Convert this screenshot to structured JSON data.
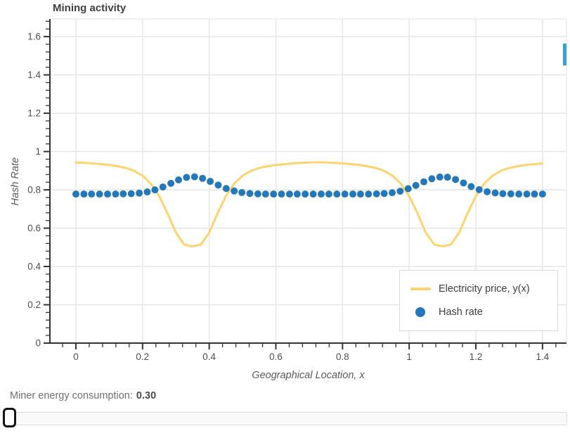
{
  "controls": {
    "consumption_label": "Miner energy consumption:",
    "consumption_value": "0.30",
    "slider": {
      "value": 0.3,
      "handle_position": "far-left"
    }
  },
  "scrollbar": {
    "color": "#34a1d7"
  },
  "chart_data": {
    "type": "line+scatter",
    "title": "Mining activity",
    "xlabel": "Geographical Location, x",
    "ylabel": "Hash Rate",
    "xlim": [
      -0.078,
      1.472
    ],
    "ylim": [
      0,
      1.692
    ],
    "grid": true,
    "legend_position": "bottom-right",
    "minor_tick_step": 0.04,
    "x_ticks": [
      0,
      0.2,
      0.4,
      0.6,
      0.8,
      1,
      1.2,
      1.4
    ],
    "x_tick_labels": [
      "0",
      "0.2",
      "0.4",
      "0.6",
      "0.8",
      "1",
      "1.2",
      "1.4"
    ],
    "y_ticks": [
      0,
      0.2,
      0.4,
      0.6,
      0.8,
      1,
      1.2,
      1.4,
      1.6
    ],
    "y_tick_labels": [
      "0",
      "0.2",
      "0.4",
      "0.6",
      "0.8",
      "1",
      "1.2",
      "1.4",
      "1.6"
    ],
    "colors": {
      "grid": "#e6e6e6",
      "axis": "#333333",
      "tick_label": "#4d4d4d"
    },
    "series": [
      {
        "name": "Electricity price, y(x)",
        "type": "line",
        "color": "#fbd470",
        "x": [
          0,
          0.025,
          0.05,
          0.075,
          0.1,
          0.125,
          0.15,
          0.175,
          0.2,
          0.225,
          0.25,
          0.275,
          0.3,
          0.325,
          0.35,
          0.375,
          0.4,
          0.425,
          0.45,
          0.475,
          0.5,
          0.525,
          0.55,
          0.575,
          0.6,
          0.625,
          0.65,
          0.675,
          0.7,
          0.725,
          0.75,
          0.775,
          0.8,
          0.825,
          0.85,
          0.875,
          0.9,
          0.925,
          0.95,
          0.975,
          1,
          1.025,
          1.05,
          1.075,
          1.1,
          1.125,
          1.15,
          1.175,
          1.2,
          1.225,
          1.25,
          1.275,
          1.3,
          1.325,
          1.35,
          1.375,
          1.4
        ],
        "y": [
          0.943,
          0.941,
          0.938,
          0.934,
          0.93,
          0.923,
          0.914,
          0.899,
          0.874,
          0.832,
          0.767,
          0.677,
          0.577,
          0.514,
          0.505,
          0.514,
          0.577,
          0.677,
          0.767,
          0.832,
          0.874,
          0.899,
          0.914,
          0.923,
          0.93,
          0.934,
          0.938,
          0.941,
          0.943,
          0.944,
          0.943,
          0.941,
          0.938,
          0.934,
          0.93,
          0.923,
          0.914,
          0.899,
          0.874,
          0.832,
          0.767,
          0.677,
          0.577,
          0.514,
          0.505,
          0.514,
          0.577,
          0.677,
          0.767,
          0.832,
          0.874,
          0.899,
          0.914,
          0.923,
          0.93,
          0.934,
          0.938
        ]
      },
      {
        "name": "Hash rate",
        "type": "scatter",
        "color": "#2478b9",
        "x": [
          0,
          0.024,
          0.047,
          0.071,
          0.095,
          0.119,
          0.142,
          0.166,
          0.19,
          0.214,
          0.237,
          0.261,
          0.285,
          0.308,
          0.332,
          0.356,
          0.38,
          0.403,
          0.427,
          0.451,
          0.475,
          0.498,
          0.522,
          0.546,
          0.569,
          0.593,
          0.617,
          0.641,
          0.664,
          0.688,
          0.712,
          0.736,
          0.759,
          0.783,
          0.807,
          0.831,
          0.854,
          0.878,
          0.902,
          0.925,
          0.949,
          0.973,
          0.997,
          1.02,
          1.044,
          1.068,
          1.092,
          1.115,
          1.139,
          1.163,
          1.186,
          1.21,
          1.234,
          1.258,
          1.281,
          1.305,
          1.329,
          1.353,
          1.376,
          1.4
        ],
        "y": [
          0.778,
          0.778,
          0.778,
          0.778,
          0.778,
          0.778,
          0.779,
          0.78,
          0.783,
          0.789,
          0.8,
          0.815,
          0.834,
          0.852,
          0.865,
          0.868,
          0.86,
          0.844,
          0.825,
          0.807,
          0.794,
          0.786,
          0.781,
          0.779,
          0.778,
          0.778,
          0.778,
          0.778,
          0.778,
          0.778,
          0.778,
          0.778,
          0.778,
          0.778,
          0.778,
          0.778,
          0.778,
          0.778,
          0.779,
          0.781,
          0.785,
          0.793,
          0.806,
          0.823,
          0.842,
          0.858,
          0.867,
          0.866,
          0.854,
          0.836,
          0.817,
          0.801,
          0.79,
          0.784,
          0.78,
          0.779,
          0.778,
          0.778,
          0.778,
          0.778
        ]
      }
    ]
  }
}
